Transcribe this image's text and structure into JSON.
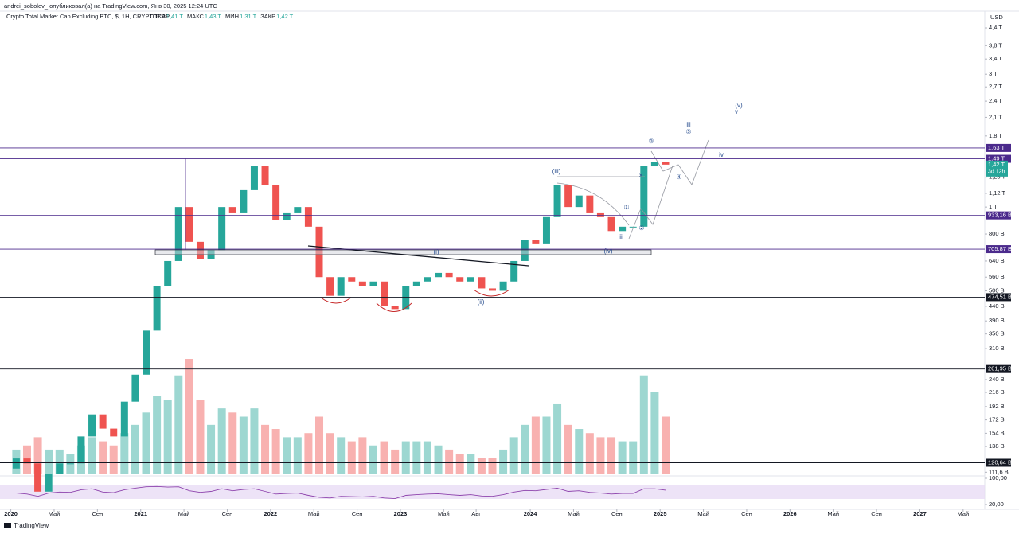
{
  "header": {
    "author": "andrei_sobolev_ опубликовал(а) на TradingView.com, Янв 30, 2025 12:24 UTC",
    "symbol": "Crypto Total Market Cap Excluding BTC, $, 1H, CRYPTOCAP",
    "ohlc": [
      {
        "label": "ОТКР",
        "value": "1,41 T"
      },
      {
        "label": "МАКС",
        "value": "1,43 T"
      },
      {
        "label": "МИН",
        "value": "1,31 T"
      },
      {
        "label": "ЗАКР",
        "value": "1,42 T"
      }
    ],
    "currency": "USD"
  },
  "chart_data": {
    "type": "candlestick",
    "log_scale": true,
    "grid": false,
    "ylim": [
      100,
      4700
    ],
    "xlim": [
      "2019-12",
      "2027-07"
    ],
    "yticks": [
      {
        "value": 4400,
        "label": "4,4 T"
      },
      {
        "value": 3800,
        "label": "3,8 T"
      },
      {
        "value": 3400,
        "label": "3,4 T"
      },
      {
        "value": 3000,
        "label": "3 T"
      },
      {
        "value": 2700,
        "label": "2,7 T"
      },
      {
        "value": 2400,
        "label": "2,4 T"
      },
      {
        "value": 2100,
        "label": "2,1 T"
      },
      {
        "value": 1800,
        "label": "1,8 T"
      },
      {
        "value": 1280,
        "label": "1,28 T"
      },
      {
        "value": 1120,
        "label": "1,12 T"
      },
      {
        "value": 1000,
        "label": "1 T"
      },
      {
        "value": 800,
        "label": "800 B"
      },
      {
        "value": 640,
        "label": "640 B"
      },
      {
        "value": 560,
        "label": "560 B"
      },
      {
        "value": 500,
        "label": "500 B"
      },
      {
        "value": 440,
        "label": "440 B"
      },
      {
        "value": 390,
        "label": "390 B"
      },
      {
        "value": 350,
        "label": "350 B"
      },
      {
        "value": 310,
        "label": "310 B"
      },
      {
        "value": 240,
        "label": "240 B"
      },
      {
        "value": 216,
        "label": "216 B"
      },
      {
        "value": 192,
        "label": "192 B"
      },
      {
        "value": 172,
        "label": "172 B"
      },
      {
        "value": 154,
        "label": "154 B"
      },
      {
        "value": 138,
        "label": "138 B"
      },
      {
        "value": 111.6,
        "label": "111,6 B"
      }
    ],
    "levels": [
      {
        "value": 1630,
        "label": "1,63 T",
        "color": "#4b2a8c"
      },
      {
        "value": 1490,
        "label": "1,49 T",
        "color": "#4b2a8c"
      },
      {
        "value": 933.16,
        "label": "933,16 B",
        "color": "#4b2a8c"
      },
      {
        "value": 705.87,
        "label": "705,87 B",
        "color": "#4b2a8c"
      },
      {
        "value": 474.51,
        "label": "474,51 B",
        "color": "#131722"
      },
      {
        "value": 261.95,
        "label": "261,95 B",
        "color": "#131722"
      },
      {
        "value": 120.64,
        "label": "120,64 B",
        "color": "#131722"
      }
    ],
    "last_price": {
      "value": 1420,
      "label": "1,42 T",
      "countdown": "3d 12h",
      "color": "#26a69a"
    },
    "up_color": "#26a69a",
    "down_color": "#ef5350",
    "xticks": [
      {
        "value": "2020-01",
        "label": "2020"
      },
      {
        "value": "2020-05",
        "label": "Май"
      },
      {
        "value": "2020-09",
        "label": "Сен"
      },
      {
        "value": "2021-01",
        "label": "2021"
      },
      {
        "value": "2021-05",
        "label": "Май"
      },
      {
        "value": "2021-09",
        "label": "Сен"
      },
      {
        "value": "2022-01",
        "label": "2022"
      },
      {
        "value": "2022-05",
        "label": "Май"
      },
      {
        "value": "2022-09",
        "label": "Сен"
      },
      {
        "value": "2023-01",
        "label": "2023"
      },
      {
        "value": "2023-05",
        "label": "Май"
      },
      {
        "value": "2023-08",
        "label": "Авг"
      },
      {
        "value": "2024-01",
        "label": "2024"
      },
      {
        "value": "2024-05",
        "label": "Май"
      },
      {
        "value": "2024-09",
        "label": "Сен"
      },
      {
        "value": "2025-01",
        "label": "2025"
      },
      {
        "value": "2025-05",
        "label": "Май"
      },
      {
        "value": "2025-09",
        "label": "Сен"
      },
      {
        "value": "2026-01",
        "label": "2026"
      },
      {
        "value": "2026-05",
        "label": "Май"
      },
      {
        "value": "2026-09",
        "label": "Сен"
      },
      {
        "value": "2027-01",
        "label": "2027"
      },
      {
        "value": "2027-05",
        "label": "Май"
      }
    ],
    "x": [
      "2020-01",
      "2020-02",
      "2020-03",
      "2020-04",
      "2020-05",
      "2020-06",
      "2020-07",
      "2020-08",
      "2020-09",
      "2020-10",
      "2020-11",
      "2020-12",
      "2021-01",
      "2021-02",
      "2021-03",
      "2021-04",
      "2021-05",
      "2021-06",
      "2021-07",
      "2021-08",
      "2021-09",
      "2021-10",
      "2021-11",
      "2021-12",
      "2022-01",
      "2022-02",
      "2022-03",
      "2022-04",
      "2022-05",
      "2022-06",
      "2022-07",
      "2022-08",
      "2022-09",
      "2022-10",
      "2022-11",
      "2022-12",
      "2023-01",
      "2023-02",
      "2023-03",
      "2023-04",
      "2023-05",
      "2023-06",
      "2023-07",
      "2023-08",
      "2023-09",
      "2023-10",
      "2023-11",
      "2023-12",
      "2024-01",
      "2024-02",
      "2024-03",
      "2024-04",
      "2024-05",
      "2024-06",
      "2024-07",
      "2024-08",
      "2024-09",
      "2024-10",
      "2024-11",
      "2024-12",
      "2025-01"
    ],
    "candles": {
      "open": [
        115,
        125,
        120,
        95,
        110,
        120,
        120,
        150,
        180,
        160,
        150,
        200,
        250,
        360,
        520,
        640,
        1000,
        750,
        650,
        700,
        1000,
        950,
        1150,
        1400,
        1200,
        900,
        950,
        1000,
        850,
        560,
        480,
        560,
        540,
        520,
        540,
        440,
        430,
        520,
        540,
        560,
        580,
        560,
        540,
        560,
        510,
        500,
        540,
        640,
        760,
        740,
        920,
        1200,
        1000,
        1100,
        950,
        920,
        820,
        850,
        850,
        1400,
        1450
      ],
      "close": [
        125,
        120,
        95,
        110,
        120,
        120,
        150,
        180,
        160,
        150,
        200,
        250,
        360,
        520,
        640,
        1000,
        750,
        650,
        700,
        1000,
        950,
        1150,
        1400,
        1200,
        900,
        950,
        1000,
        850,
        560,
        480,
        560,
        540,
        520,
        540,
        440,
        430,
        520,
        540,
        560,
        580,
        560,
        540,
        560,
        510,
        500,
        540,
        640,
        760,
        740,
        920,
        1200,
        1000,
        1100,
        950,
        920,
        820,
        850,
        850,
        1400,
        1450,
        1420
      ]
    },
    "volume": [
      30,
      35,
      45,
      30,
      30,
      25,
      35,
      45,
      40,
      35,
      50,
      60,
      75,
      95,
      90,
      120,
      140,
      90,
      60,
      80,
      75,
      70,
      80,
      60,
      55,
      45,
      45,
      50,
      70,
      50,
      45,
      40,
      45,
      35,
      40,
      30,
      40,
      40,
      40,
      35,
      30,
      25,
      25,
      20,
      20,
      30,
      45,
      60,
      70,
      70,
      85,
      60,
      55,
      50,
      45,
      45,
      40,
      40,
      120,
      100,
      70
    ],
    "rsi": {
      "values": [
        55,
        52,
        45,
        55,
        58,
        57,
        65,
        68,
        58,
        56,
        65,
        70,
        74,
        75,
        73,
        74,
        62,
        57,
        60,
        68,
        62,
        66,
        68,
        60,
        52,
        54,
        55,
        48,
        42,
        40,
        45,
        44,
        43,
        45,
        40,
        38,
        48,
        50,
        52,
        53,
        50,
        48,
        50,
        46,
        45,
        50,
        58,
        63,
        62,
        66,
        70,
        60,
        62,
        57,
        55,
        52,
        54,
        54,
        68,
        68,
        64
      ],
      "ylim": [
        20,
        100
      ],
      "yticks": [
        {
          "value": 100,
          "label": "100,00"
        },
        {
          "value": 20,
          "label": "20,00"
        }
      ],
      "color": "#8e44ad"
    },
    "annotations": [
      "(i)",
      "(ii)",
      "(iii)",
      "(iv)",
      "(v)",
      "v",
      "iii",
      "⑤",
      "iv",
      "③",
      "④",
      "①",
      "②",
      "ii",
      "×"
    ]
  },
  "footer": {
    "brand": "TradingView"
  }
}
